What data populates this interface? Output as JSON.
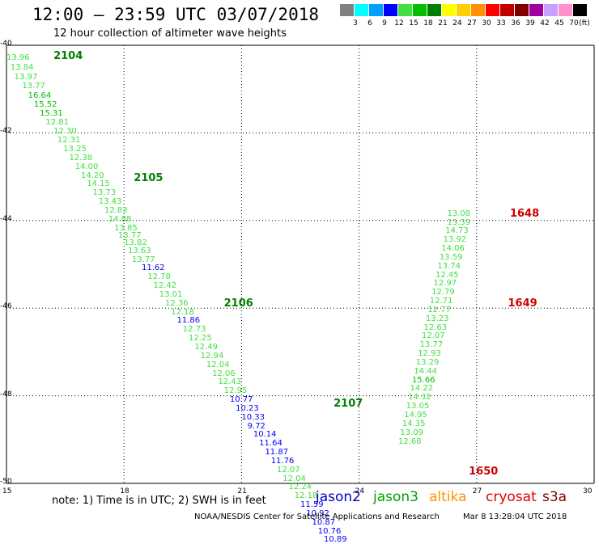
{
  "title": "12:00 — 23:59 UTC 03/07/2018",
  "subtitle": "12 hour collection of altimeter wave heights",
  "legend": {
    "unit": "(ft)",
    "bins": [
      {
        "label": "3",
        "color": "#808080"
      },
      {
        "label": "6",
        "color": "#00ffff"
      },
      {
        "label": "9",
        "color": "#00a0ff"
      },
      {
        "label": "12",
        "color": "#0000ff"
      },
      {
        "label": "15",
        "color": "#40e040"
      },
      {
        "label": "18",
        "color": "#00c000"
      },
      {
        "label": "21",
        "color": "#008000"
      },
      {
        "label": "24",
        "color": "#ffff00"
      },
      {
        "label": "27",
        "color": "#ffd000"
      },
      {
        "label": "30",
        "color": "#ff9000"
      },
      {
        "label": "33",
        "color": "#ff0000"
      },
      {
        "label": "36",
        "color": "#c00000"
      },
      {
        "label": "39",
        "color": "#800000"
      },
      {
        "label": "42",
        "color": "#a000a0"
      },
      {
        "label": "45",
        "color": "#c8a0ff"
      },
      {
        "label": "70",
        "color": "#ff90d0"
      },
      {
        "label": "",
        "color": "#000000"
      }
    ]
  },
  "axes": {
    "lat_ticks": [
      "-40",
      "-42",
      "-44",
      "-46",
      "-48",
      "-50"
    ],
    "lon_ticks": [
      "15",
      "18",
      "21",
      "24",
      "27",
      "30"
    ]
  },
  "passes": [
    {
      "label": "2104",
      "color": "#008000",
      "lon": 16.2,
      "lat": -40.25
    },
    {
      "label": "2105",
      "color": "#008000",
      "lon": 18.25,
      "lat": -43.05
    },
    {
      "label": "2106",
      "color": "#008000",
      "lon": 20.55,
      "lat": -45.9
    },
    {
      "label": "2107",
      "color": "#008000",
      "lon": 23.35,
      "lat": -48.2
    },
    {
      "label": "1648",
      "color": "#d00000",
      "lon": 27.85,
      "lat": -43.85
    },
    {
      "label": "1649",
      "color": "#d00000",
      "lon": 27.8,
      "lat": -45.9
    },
    {
      "label": "1650",
      "color": "#d00000",
      "lon": 26.8,
      "lat": -49.75
    }
  ],
  "observations": [
    {
      "v": "13.96",
      "lon": 15.0,
      "lat": -40.3,
      "c": "#40e040"
    },
    {
      "v": "13.84",
      "lon": 15.1,
      "lat": -40.52,
      "c": "#40e040"
    },
    {
      "v": "13.97",
      "lon": 15.2,
      "lat": -40.74,
      "c": "#40e040"
    },
    {
      "v": "13.77",
      "lon": 15.4,
      "lat": -40.94,
      "c": "#40e040"
    },
    {
      "v": "16.64",
      "lon": 15.55,
      "lat": -41.16,
      "c": "#00c000"
    },
    {
      "v": "15.52",
      "lon": 15.7,
      "lat": -41.36,
      "c": "#00c000"
    },
    {
      "v": "15.31",
      "lon": 15.85,
      "lat": -41.56,
      "c": "#00c000"
    },
    {
      "v": "12.81",
      "lon": 16.0,
      "lat": -41.78,
      "c": "#40e040"
    },
    {
      "v": "12.30",
      "lon": 16.2,
      "lat": -41.98,
      "c": "#40e040"
    },
    {
      "v": "12.31",
      "lon": 16.3,
      "lat": -42.18,
      "c": "#40e040"
    },
    {
      "v": "13.25",
      "lon": 16.45,
      "lat": -42.38,
      "c": "#40e040"
    },
    {
      "v": "12.38",
      "lon": 16.6,
      "lat": -42.58,
      "c": "#40e040"
    },
    {
      "v": "14.00",
      "lon": 16.75,
      "lat": -42.78,
      "c": "#40e040"
    },
    {
      "v": "14.20",
      "lon": 16.9,
      "lat": -42.98,
      "c": "#40e040"
    },
    {
      "v": "14.15",
      "lon": 17.05,
      "lat": -43.18,
      "c": "#40e040"
    },
    {
      "v": "13.73",
      "lon": 17.2,
      "lat": -43.38,
      "c": "#40e040"
    },
    {
      "v": "13.43",
      "lon": 17.35,
      "lat": -43.58,
      "c": "#40e040"
    },
    {
      "v": "12.83",
      "lon": 17.5,
      "lat": -43.78,
      "c": "#40e040"
    },
    {
      "v": "14.88",
      "lon": 17.6,
      "lat": -43.98,
      "c": "#40e040"
    },
    {
      "v": "13.85",
      "lon": 17.75,
      "lat": -44.18,
      "c": "#40e040"
    },
    {
      "v": "13.77",
      "lon": 17.85,
      "lat": -44.36,
      "c": "#40e040"
    },
    {
      "v": "13.82",
      "lon": 18.0,
      "lat": -44.52,
      "c": "#40e040"
    },
    {
      "v": "13.63",
      "lon": 18.1,
      "lat": -44.7,
      "c": "#40e040"
    },
    {
      "v": "13.77",
      "lon": 18.2,
      "lat": -44.9,
      "c": "#40e040"
    },
    {
      "v": "11.62",
      "lon": 18.45,
      "lat": -45.1,
      "c": "#0000ff"
    },
    {
      "v": "12.78",
      "lon": 18.6,
      "lat": -45.3,
      "c": "#40e040"
    },
    {
      "v": "12.42",
      "lon": 18.75,
      "lat": -45.5,
      "c": "#40e040"
    },
    {
      "v": "13.01",
      "lon": 18.9,
      "lat": -45.7,
      "c": "#40e040"
    },
    {
      "v": "12.36",
      "lon": 19.05,
      "lat": -45.9,
      "c": "#40e040"
    },
    {
      "v": "12.18",
      "lon": 19.2,
      "lat": -46.1,
      "c": "#40e040"
    },
    {
      "v": "11.86",
      "lon": 19.35,
      "lat": -46.3,
      "c": "#0000ff"
    },
    {
      "v": "12.73",
      "lon": 19.5,
      "lat": -46.5,
      "c": "#40e040"
    },
    {
      "v": "12.25",
      "lon": 19.65,
      "lat": -46.7,
      "c": "#40e040"
    },
    {
      "v": "12.49",
      "lon": 19.8,
      "lat": -46.9,
      "c": "#40e040"
    },
    {
      "v": "12.94",
      "lon": 19.95,
      "lat": -47.1,
      "c": "#40e040"
    },
    {
      "v": "12.04",
      "lon": 20.1,
      "lat": -47.3,
      "c": "#40e040"
    },
    {
      "v": "12.06",
      "lon": 20.25,
      "lat": -47.5,
      "c": "#40e040"
    },
    {
      "v": "12.43",
      "lon": 20.4,
      "lat": -47.7,
      "c": "#40e040"
    },
    {
      "v": "12.95",
      "lon": 20.55,
      "lat": -47.9,
      "c": "#40e040"
    },
    {
      "v": "10.77",
      "lon": 20.7,
      "lat": -48.1,
      "c": "#0000ff"
    },
    {
      "v": "10.23",
      "lon": 20.85,
      "lat": -48.3,
      "c": "#0000ff"
    },
    {
      "v": "10.33",
      "lon": 21.0,
      "lat": -48.5,
      "c": "#0000ff"
    },
    {
      "v": "9.72",
      "lon": 21.15,
      "lat": -48.7,
      "c": "#0000ff"
    },
    {
      "v": "10.14",
      "lon": 21.3,
      "lat": -48.9,
      "c": "#0000ff"
    },
    {
      "v": "11.64",
      "lon": 21.45,
      "lat": -49.1,
      "c": "#0000ff"
    },
    {
      "v": "11.87",
      "lon": 21.6,
      "lat": -49.3,
      "c": "#0000ff"
    },
    {
      "v": "11.76",
      "lon": 21.75,
      "lat": -49.5,
      "c": "#0000ff"
    },
    {
      "v": "12.07",
      "lon": 21.9,
      "lat": -49.7,
      "c": "#40e040"
    },
    {
      "v": "12.04",
      "lon": 22.05,
      "lat": -49.9,
      "c": "#40e040"
    },
    {
      "v": "12.24",
      "lon": 22.2,
      "lat": -50.1,
      "c": "#40e040"
    },
    {
      "v": "12.18",
      "lon": 22.35,
      "lat": -50.3,
      "c": "#40e040"
    },
    {
      "v": "11.59",
      "lon": 22.5,
      "lat": -50.5,
      "c": "#0000ff"
    },
    {
      "v": "10.92",
      "lon": 22.65,
      "lat": -50.7,
      "c": "#0000ff"
    },
    {
      "v": "10.87",
      "lon": 22.8,
      "lat": -50.9,
      "c": "#0000ff"
    },
    {
      "v": "10.76",
      "lon": 22.95,
      "lat": -51.1,
      "c": "#0000ff"
    },
    {
      "v": "10.89",
      "lon": 23.1,
      "lat": -51.3,
      "c": "#0000ff"
    },
    {
      "v": "13.08",
      "lon": 26.25,
      "lat": -43.85,
      "c": "#40e040"
    },
    {
      "v": "13.39",
      "lon": 26.25,
      "lat": -44.05,
      "c": "#40e040"
    },
    {
      "v": "14.73",
      "lon": 26.2,
      "lat": -44.25,
      "c": "#40e040"
    },
    {
      "v": "13.92",
      "lon": 26.15,
      "lat": -44.45,
      "c": "#40e040"
    },
    {
      "v": "14.06",
      "lon": 26.1,
      "lat": -44.65,
      "c": "#40e040"
    },
    {
      "v": "13.59",
      "lon": 26.05,
      "lat": -44.85,
      "c": "#40e040"
    },
    {
      "v": "13.74",
      "lon": 26.0,
      "lat": -45.05,
      "c": "#40e040"
    },
    {
      "v": "12.45",
      "lon": 25.95,
      "lat": -45.25,
      "c": "#40e040"
    },
    {
      "v": "12.97",
      "lon": 25.9,
      "lat": -45.45,
      "c": "#40e040"
    },
    {
      "v": "12.79",
      "lon": 25.85,
      "lat": -45.65,
      "c": "#40e040"
    },
    {
      "v": "12.71",
      "lon": 25.8,
      "lat": -45.85,
      "c": "#40e040"
    },
    {
      "v": "12.77",
      "lon": 25.75,
      "lat": -46.05,
      "c": "#40e040"
    },
    {
      "v": "13.23",
      "lon": 25.7,
      "lat": -46.25,
      "c": "#40e040"
    },
    {
      "v": "12.63",
      "lon": 25.65,
      "lat": -46.45,
      "c": "#40e040"
    },
    {
      "v": "12.07",
      "lon": 25.6,
      "lat": -46.65,
      "c": "#40e040"
    },
    {
      "v": "13.77",
      "lon": 25.55,
      "lat": -46.85,
      "c": "#40e040"
    },
    {
      "v": "12.93",
      "lon": 25.5,
      "lat": -47.05,
      "c": "#40e040"
    },
    {
      "v": "13.29",
      "lon": 25.45,
      "lat": -47.25,
      "c": "#40e040"
    },
    {
      "v": "14.44",
      "lon": 25.4,
      "lat": -47.45,
      "c": "#40e040"
    },
    {
      "v": "15.66",
      "lon": 25.35,
      "lat": -47.65,
      "c": "#00c000"
    },
    {
      "v": "14.22",
      "lon": 25.3,
      "lat": -47.85,
      "c": "#40e040"
    },
    {
      "v": "14.32",
      "lon": 25.25,
      "lat": -48.05,
      "c": "#40e040"
    },
    {
      "v": "13.05",
      "lon": 25.2,
      "lat": -48.25,
      "c": "#40e040"
    },
    {
      "v": "14.95",
      "lon": 25.15,
      "lat": -48.45,
      "c": "#40e040"
    },
    {
      "v": "14.35",
      "lon": 25.1,
      "lat": -48.65,
      "c": "#40e040"
    },
    {
      "v": "13.09",
      "lon": 25.05,
      "lat": -48.85,
      "c": "#40e040"
    },
    {
      "v": "12.68",
      "lon": 25.0,
      "lat": -49.05,
      "c": "#40e040"
    }
  ],
  "note": "note: 1) Time is in UTC; 2) SWH is in feet",
  "satellites": [
    {
      "label": "jason2",
      "color": "#0000c0"
    },
    {
      "label": "jason3",
      "color": "#00a000"
    },
    {
      "label": "altika",
      "color": "#ff9000"
    },
    {
      "label": "cryosat",
      "color": "#e00000"
    },
    {
      "label": "s3a",
      "color": "#800000"
    }
  ],
  "credit": "NOAA/NESDIS Center for Satellite Applications and Research",
  "timestamp": "Mar  8 13:28:04 UTC 2018"
}
